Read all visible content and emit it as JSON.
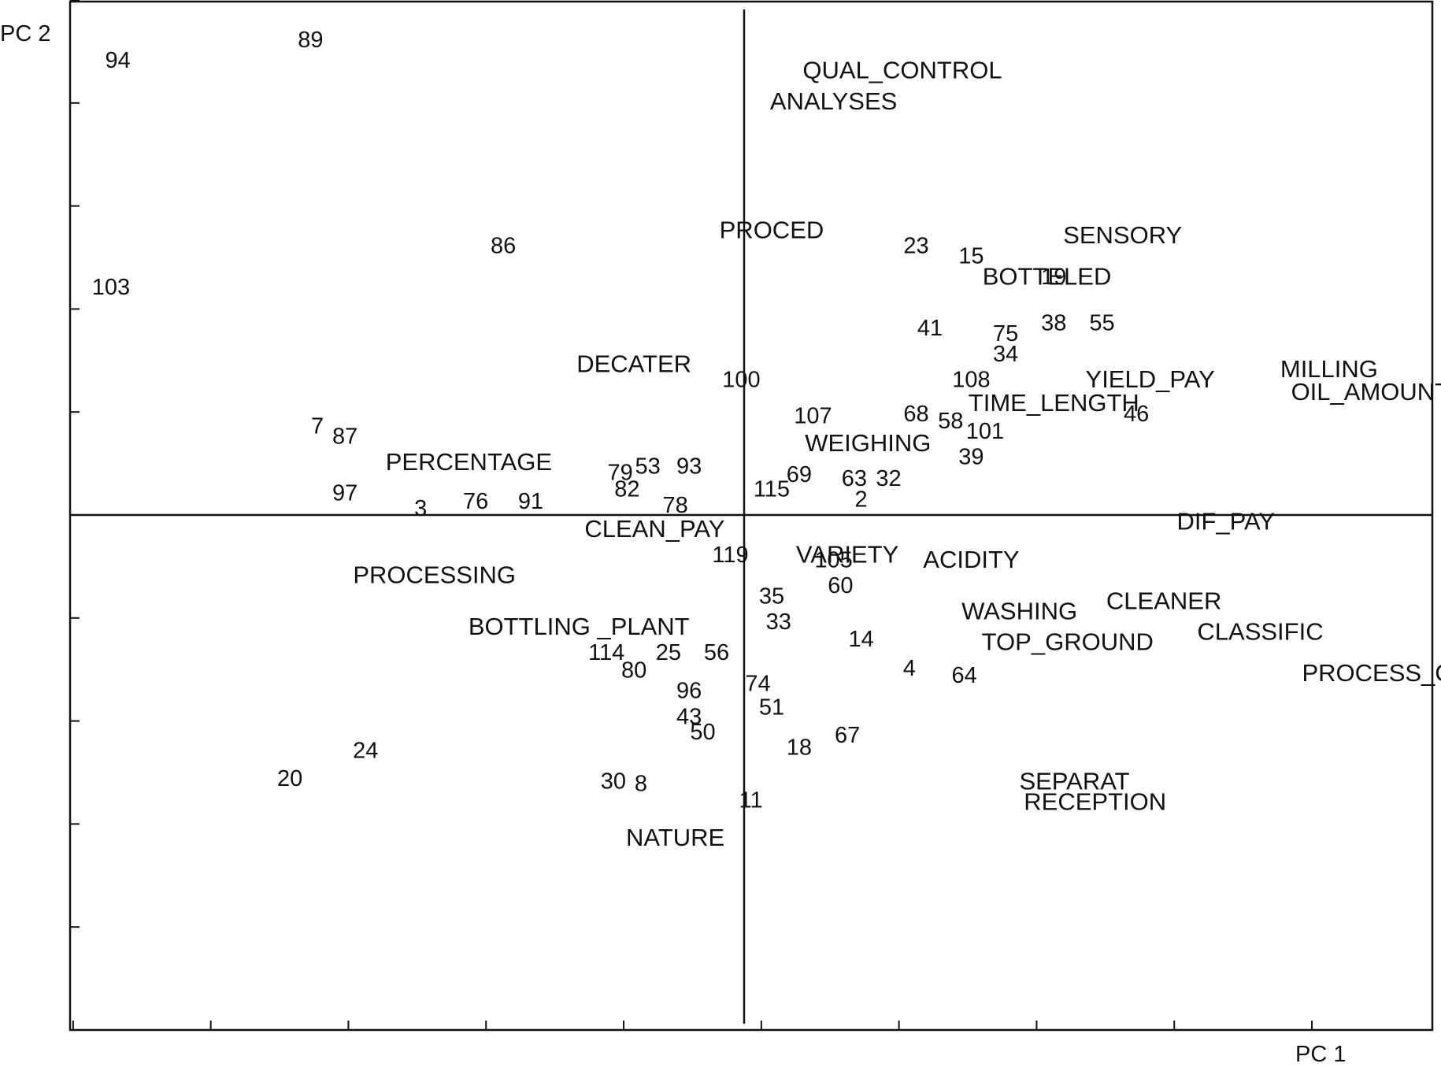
{
  "chart_data": {
    "type": "scatter",
    "title": "",
    "xlabel": "PC 1",
    "ylabel": "PC 2",
    "xlim": [
      -5,
      5
    ],
    "ylim": [
      -5,
      5.2
    ],
    "grid": false,
    "legend": "none",
    "origin_lines": true,
    "x_ticks": [
      -4.875,
      -3.875,
      -2.875,
      -1.875,
      -0.875,
      0.125,
      1.125,
      2.125,
      3.125,
      4.125,
      5.0
    ],
    "y_ticks": [
      -4.0,
      -3.0,
      -2.0,
      -1.0,
      1.0,
      2.0,
      3.0,
      4.0,
      5.0
    ],
    "series": [
      {
        "points": [
          {
            "label": "94",
            "x": -4.55,
            "y": 4.4
          },
          {
            "label": "89",
            "x": -3.15,
            "y": 4.6
          },
          {
            "label": "103",
            "x": -4.6,
            "y": 2.2
          },
          {
            "label": "86",
            "x": -1.75,
            "y": 2.6
          },
          {
            "label": "7",
            "x": -3.1,
            "y": 0.85
          },
          {
            "label": "87",
            "x": -2.9,
            "y": 0.75
          },
          {
            "label": "97",
            "x": -2.9,
            "y": 0.2
          },
          {
            "label": "3",
            "x": -2.35,
            "y": 0.05
          },
          {
            "label": "76",
            "x": -1.95,
            "y": 0.12
          },
          {
            "label": "91",
            "x": -1.55,
            "y": 0.12
          },
          {
            "label": "79",
            "x": -0.9,
            "y": 0.4
          },
          {
            "label": "53",
            "x": -0.7,
            "y": 0.46
          },
          {
            "label": "82",
            "x": -0.85,
            "y": 0.24
          },
          {
            "label": "93",
            "x": -0.4,
            "y": 0.46
          },
          {
            "label": "78",
            "x": -0.5,
            "y": 0.08
          },
          {
            "label": "100",
            "x": -0.02,
            "y": 1.3
          },
          {
            "label": "107",
            "x": 0.5,
            "y": 0.95
          },
          {
            "label": "115",
            "x": 0.2,
            "y": 0.24
          },
          {
            "label": "69",
            "x": 0.4,
            "y": 0.38
          },
          {
            "label": "63",
            "x": 0.8,
            "y": 0.34
          },
          {
            "label": "32",
            "x": 1.05,
            "y": 0.34
          },
          {
            "label": "2",
            "x": 0.85,
            "y": 0.14
          },
          {
            "label": "23",
            "x": 1.25,
            "y": 2.6
          },
          {
            "label": "15",
            "x": 1.65,
            "y": 2.5
          },
          {
            "label": "19",
            "x": 2.25,
            "y": 2.3
          },
          {
            "label": "41",
            "x": 1.35,
            "y": 1.8
          },
          {
            "label": "75",
            "x": 1.9,
            "y": 1.75
          },
          {
            "label": "38",
            "x": 2.25,
            "y": 1.85
          },
          {
            "label": "55",
            "x": 2.6,
            "y": 1.85
          },
          {
            "label": "34",
            "x": 1.9,
            "y": 1.55
          },
          {
            "label": "108",
            "x": 1.65,
            "y": 1.3
          },
          {
            "label": "68",
            "x": 1.25,
            "y": 0.97
          },
          {
            "label": "58",
            "x": 1.5,
            "y": 0.9
          },
          {
            "label": "101",
            "x": 1.75,
            "y": 0.8
          },
          {
            "label": "39",
            "x": 1.65,
            "y": 0.55
          },
          {
            "label": "46",
            "x": 2.85,
            "y": 0.97
          },
          {
            "label": "119",
            "x": -0.1,
            "y": -0.4
          },
          {
            "label": "105",
            "x": 0.65,
            "y": -0.45
          },
          {
            "label": "60",
            "x": 0.7,
            "y": -0.7
          },
          {
            "label": "35",
            "x": 0.2,
            "y": -0.8
          },
          {
            "label": "33",
            "x": 0.25,
            "y": -1.05
          },
          {
            "label": "14",
            "x": 0.85,
            "y": -1.22
          },
          {
            "label": "4",
            "x": 1.2,
            "y": -1.5
          },
          {
            "label": "64",
            "x": 1.6,
            "y": -1.57
          },
          {
            "label": "114",
            "x": -1.0,
            "y": -1.35
          },
          {
            "label": "80",
            "x": -0.8,
            "y": -1.52
          },
          {
            "label": "25",
            "x": -0.55,
            "y": -1.35
          },
          {
            "label": "56",
            "x": -0.2,
            "y": -1.35
          },
          {
            "label": "74",
            "x": 0.1,
            "y": -1.65
          },
          {
            "label": "96",
            "x": -0.4,
            "y": -1.72
          },
          {
            "label": "51",
            "x": 0.2,
            "y": -1.88
          },
          {
            "label": "43",
            "x": -0.4,
            "y": -1.97
          },
          {
            "label": "50",
            "x": -0.3,
            "y": -2.12
          },
          {
            "label": "67",
            "x": 0.75,
            "y": -2.15
          },
          {
            "label": "18",
            "x": 0.4,
            "y": -2.27
          },
          {
            "label": "24",
            "x": -2.75,
            "y": -2.3
          },
          {
            "label": "20",
            "x": -3.3,
            "y": -2.57
          },
          {
            "label": "30",
            "x": -0.95,
            "y": -2.6
          },
          {
            "label": "8",
            "x": -0.75,
            "y": -2.62
          },
          {
            "label": "11",
            "x": 0.05,
            "y": -2.78
          }
        ]
      },
      {
        "points": [
          {
            "label": "QUAL_CONTROL",
            "x": 1.15,
            "y": 4.3
          },
          {
            "label": "ANALYSES",
            "x": 0.65,
            "y": 4.0
          },
          {
            "label": "PROCED",
            "x": 0.2,
            "y": 2.75
          },
          {
            "label": "SENSORY",
            "x": 2.75,
            "y": 2.7
          },
          {
            "label": "BOTTELED",
            "x": 2.2,
            "y": 2.3
          },
          {
            "label": "DECATER",
            "x": -0.8,
            "y": 1.45
          },
          {
            "label": "YIELD_PAY",
            "x": 2.95,
            "y": 1.3
          },
          {
            "label": "MILLING",
            "x": 4.25,
            "y": 1.4
          },
          {
            "label": "OIL_AMOUNT",
            "x": 4.55,
            "y": 1.18
          },
          {
            "label": "TIME_LENGTH",
            "x": 2.25,
            "y": 1.07
          },
          {
            "label": "WEIGHING",
            "x": 0.9,
            "y": 0.68
          },
          {
            "label": "PERCENTAGE",
            "x": -2.0,
            "y": 0.5
          },
          {
            "label": "CLEAN_PAY",
            "x": -0.65,
            "y": -0.15
          },
          {
            "label": "DIF_PAY",
            "x": 3.5,
            "y": -0.08
          },
          {
            "label": "VARIETY",
            "x": 0.75,
            "y": -0.4
          },
          {
            "label": "ACIDITY",
            "x": 1.65,
            "y": -0.45
          },
          {
            "label": "PROCESSING",
            "x": -2.25,
            "y": -0.6
          },
          {
            "label": "WASHING",
            "x": 2.0,
            "y": -0.95
          },
          {
            "label": "CLEANER",
            "x": 3.05,
            "y": -0.85
          },
          {
            "label": "CLASSIFIC",
            "x": 3.75,
            "y": -1.15
          },
          {
            "label": "TOP_GROUND",
            "x": 2.35,
            "y": -1.25
          },
          {
            "label": "BOTTLING _PLANT",
            "x": -1.2,
            "y": -1.1
          },
          {
            "label": "PROCESS_C",
            "x": 4.6,
            "y": -1.55
          },
          {
            "label": "SEPARAT",
            "x": 2.4,
            "y": -2.6
          },
          {
            "label": "RECEPTION",
            "x": 2.55,
            "y": -2.8
          },
          {
            "label": "NATURE",
            "x": -0.5,
            "y": -3.15
          }
        ]
      }
    ]
  }
}
